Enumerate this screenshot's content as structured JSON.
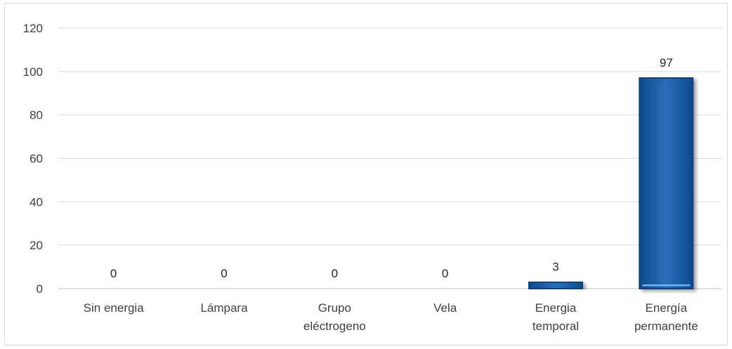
{
  "chart_data": {
    "type": "bar",
    "categories": [
      [
        "Sin energia"
      ],
      [
        "Lámpara"
      ],
      [
        "Grupo",
        "eléctrogeno"
      ],
      [
        "Vela"
      ],
      [
        "Energia",
        "temporal"
      ],
      [
        "Energía",
        "permanente"
      ]
    ],
    "values": [
      0,
      0,
      0,
      0,
      3,
      97
    ],
    "data_labels": [
      "0",
      "0",
      "0",
      "0",
      "3",
      "97"
    ],
    "title": "",
    "xlabel": "",
    "ylabel": "",
    "ylim": [
      0,
      120
    ],
    "yticks": [
      0,
      20,
      40,
      60,
      80,
      100,
      120
    ],
    "grid": true,
    "legend": "none",
    "colors": {
      "bar": "#1f5fa8",
      "bar_dark": "#0d3f7a",
      "bar_light": "#6fb3ef",
      "grid": "#d9d9d9",
      "axis": "#bfbfbf"
    }
  }
}
